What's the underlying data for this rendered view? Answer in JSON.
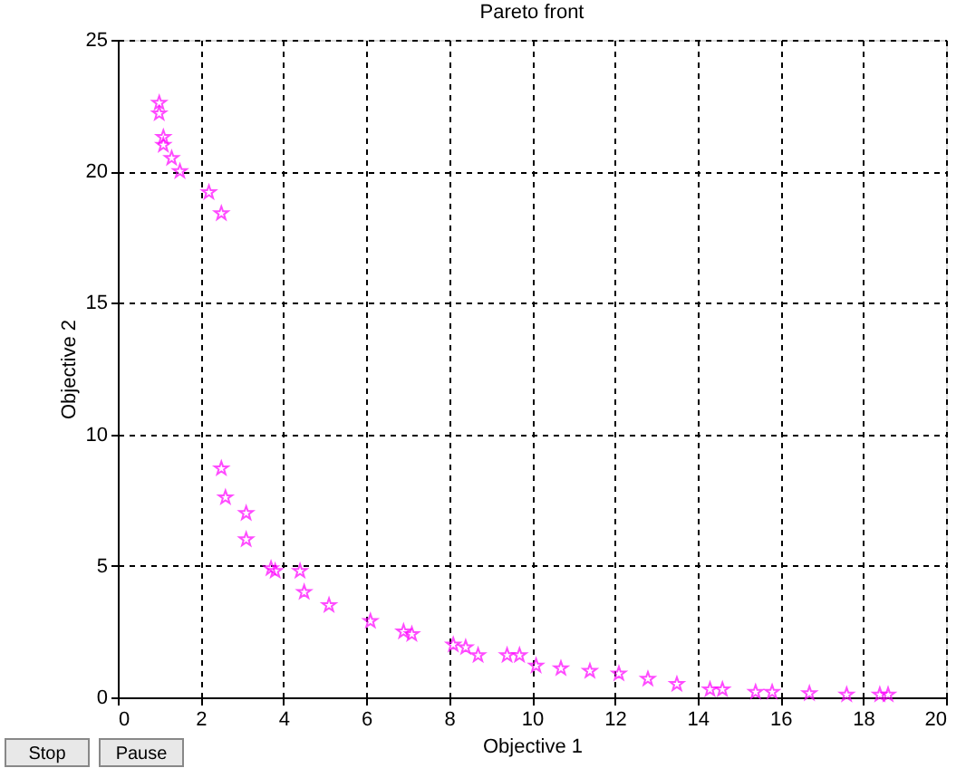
{
  "chart_data": {
    "type": "scatter",
    "title": "Pareto front",
    "xlabel": "Objective 1",
    "ylabel": "Objective 2",
    "xlim": [
      0,
      20
    ],
    "ylim": [
      0,
      25
    ],
    "xticks": [
      0,
      2,
      4,
      6,
      8,
      10,
      12,
      14,
      16,
      18,
      20
    ],
    "yticks": [
      0,
      5,
      10,
      15,
      20,
      25
    ],
    "grid": true,
    "marker": "star",
    "series": [
      {
        "color": "#ff00ff",
        "x": [
          1.0,
          1.0,
          1.1,
          1.1,
          1.3,
          1.5,
          2.2,
          2.5,
          2.5,
          2.6,
          3.1,
          3.1,
          3.7,
          3.8,
          4.4,
          4.5,
          5.1,
          6.1,
          6.9,
          7.1,
          8.1,
          8.4,
          8.7,
          9.4,
          9.7,
          10.1,
          10.7,
          11.4,
          12.1,
          12.8,
          13.5,
          14.3,
          14.6,
          15.4,
          15.8,
          16.7,
          17.6,
          18.4,
          18.6
        ],
        "values": [
          22.6,
          22.2,
          21.3,
          21.0,
          20.5,
          20.0,
          19.2,
          18.4,
          8.7,
          7.6,
          7.0,
          6.0,
          4.9,
          4.8,
          4.8,
          4.0,
          3.5,
          2.9,
          2.5,
          2.4,
          2.0,
          1.9,
          1.6,
          1.6,
          1.6,
          1.2,
          1.1,
          1.0,
          0.9,
          0.7,
          0.5,
          0.3,
          0.3,
          0.2,
          0.2,
          0.15,
          0.1,
          0.1,
          0.1
        ]
      }
    ],
    "annotations": [
      "Stop",
      "Pause"
    ]
  }
}
